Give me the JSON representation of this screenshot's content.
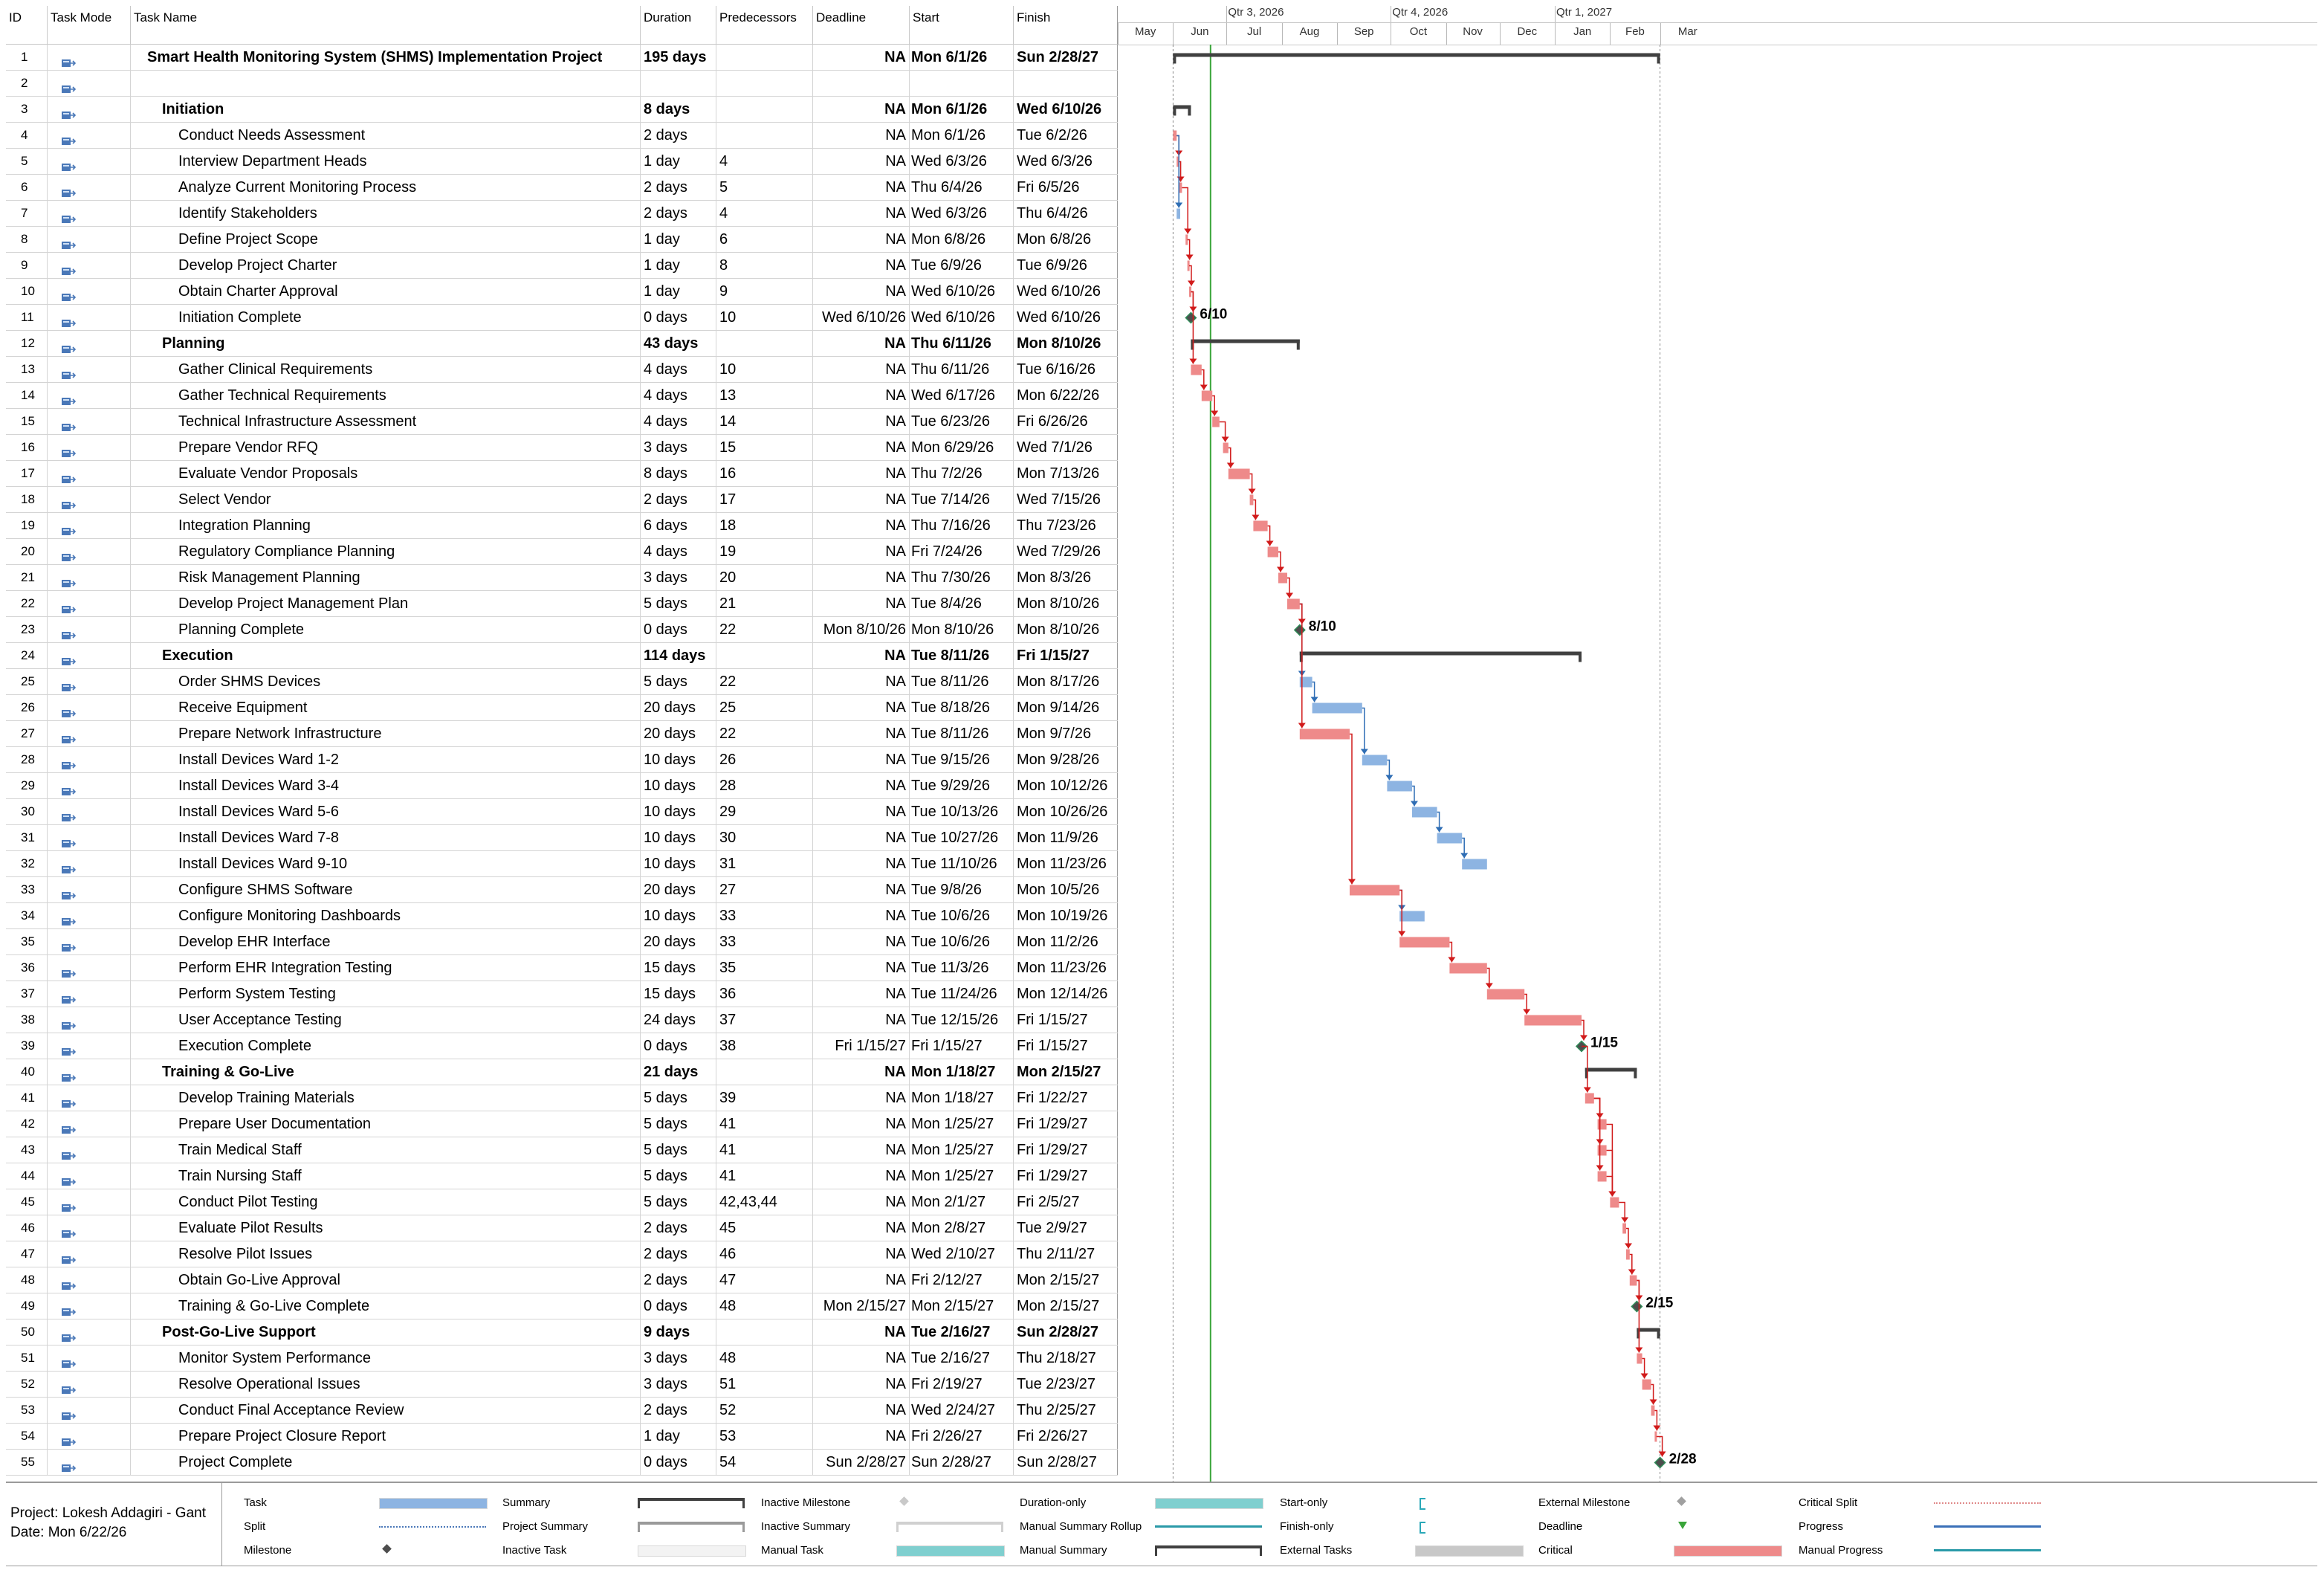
{
  "columns": {
    "id": "ID",
    "mode": "Task Mode",
    "name": "Task Name",
    "duration": "Duration",
    "predecessors": "Predecessors",
    "deadline": "Deadline",
    "start": "Start",
    "finish": "Finish"
  },
  "timescale": {
    "quarters": [
      "Qtr 3, 2026",
      "Qtr 4, 2026",
      "Qtr 1, 2027"
    ],
    "months": [
      "May",
      "Jun",
      "Jul",
      "Aug",
      "Sep",
      "Oct",
      "Nov",
      "Dec",
      "Jan",
      "Feb",
      "Mar"
    ]
  },
  "tasks": [
    {
      "id": "1",
      "name": "Smart Health Monitoring System (SHMS) Implementation Project",
      "duration": "195 days",
      "pred": "",
      "deadline": "NA",
      "start": "Mon 6/1/26",
      "finish": "Sun 2/28/27",
      "level": 0,
      "summary": true
    },
    {
      "id": "2",
      "name": "",
      "duration": "",
      "pred": "",
      "deadline": "",
      "start": "",
      "finish": "",
      "level": 2
    },
    {
      "id": "3",
      "name": "Initiation",
      "duration": "8 days",
      "pred": "",
      "deadline": "NA",
      "start": "Mon 6/1/26",
      "finish": "Wed 6/10/26",
      "level": 1,
      "summary": true
    },
    {
      "id": "4",
      "name": "Conduct Needs Assessment",
      "duration": "2 days",
      "pred": "",
      "deadline": "NA",
      "start": "Mon 6/1/26",
      "finish": "Tue 6/2/26",
      "level": 2
    },
    {
      "id": "5",
      "name": "Interview Department Heads",
      "duration": "1 day",
      "pred": "4",
      "deadline": "NA",
      "start": "Wed 6/3/26",
      "finish": "Wed 6/3/26",
      "level": 2
    },
    {
      "id": "6",
      "name": "Analyze Current Monitoring Process",
      "duration": "2 days",
      "pred": "5",
      "deadline": "NA",
      "start": "Thu 6/4/26",
      "finish": "Fri 6/5/26",
      "level": 2
    },
    {
      "id": "7",
      "name": "Identify Stakeholders",
      "duration": "2 days",
      "pred": "4",
      "deadline": "NA",
      "start": "Wed 6/3/26",
      "finish": "Thu 6/4/26",
      "level": 2
    },
    {
      "id": "8",
      "name": "Define Project Scope",
      "duration": "1 day",
      "pred": "6",
      "deadline": "NA",
      "start": "Mon 6/8/26",
      "finish": "Mon 6/8/26",
      "level": 2
    },
    {
      "id": "9",
      "name": "Develop Project Charter",
      "duration": "1 day",
      "pred": "8",
      "deadline": "NA",
      "start": "Tue 6/9/26",
      "finish": "Tue 6/9/26",
      "level": 2
    },
    {
      "id": "10",
      "name": "Obtain Charter Approval",
      "duration": "1 day",
      "pred": "9",
      "deadline": "NA",
      "start": "Wed 6/10/26",
      "finish": "Wed 6/10/26",
      "level": 2
    },
    {
      "id": "11",
      "name": "Initiation Complete",
      "duration": "0 days",
      "pred": "10",
      "deadline": "Wed 6/10/26",
      "start": "Wed 6/10/26",
      "finish": "Wed 6/10/26",
      "level": 2
    },
    {
      "id": "12",
      "name": "Planning",
      "duration": "43 days",
      "pred": "",
      "deadline": "NA",
      "start": "Thu 6/11/26",
      "finish": "Mon 8/10/26",
      "level": 1,
      "summary": true
    },
    {
      "id": "13",
      "name": "Gather Clinical Requirements",
      "duration": "4 days",
      "pred": "10",
      "deadline": "NA",
      "start": "Thu 6/11/26",
      "finish": "Tue 6/16/26",
      "level": 2
    },
    {
      "id": "14",
      "name": "Gather Technical Requirements",
      "duration": "4 days",
      "pred": "13",
      "deadline": "NA",
      "start": "Wed 6/17/26",
      "finish": "Mon 6/22/26",
      "level": 2
    },
    {
      "id": "15",
      "name": "Technical Infrastructure Assessment",
      "duration": "4 days",
      "pred": "14",
      "deadline": "NA",
      "start": "Tue 6/23/26",
      "finish": "Fri 6/26/26",
      "level": 2
    },
    {
      "id": "16",
      "name": "Prepare Vendor RFQ",
      "duration": "3 days",
      "pred": "15",
      "deadline": "NA",
      "start": "Mon 6/29/26",
      "finish": "Wed 7/1/26",
      "level": 2
    },
    {
      "id": "17",
      "name": "Evaluate Vendor Proposals",
      "duration": "8 days",
      "pred": "16",
      "deadline": "NA",
      "start": "Thu 7/2/26",
      "finish": "Mon 7/13/26",
      "level": 2
    },
    {
      "id": "18",
      "name": "Select Vendor",
      "duration": "2 days",
      "pred": "17",
      "deadline": "NA",
      "start": "Tue 7/14/26",
      "finish": "Wed 7/15/26",
      "level": 2
    },
    {
      "id": "19",
      "name": "Integration Planning",
      "duration": "6 days",
      "pred": "18",
      "deadline": "NA",
      "start": "Thu 7/16/26",
      "finish": "Thu 7/23/26",
      "level": 2
    },
    {
      "id": "20",
      "name": "Regulatory Compliance Planning",
      "duration": "4 days",
      "pred": "19",
      "deadline": "NA",
      "start": "Fri 7/24/26",
      "finish": "Wed 7/29/26",
      "level": 2
    },
    {
      "id": "21",
      "name": "Risk Management Planning",
      "duration": "3 days",
      "pred": "20",
      "deadline": "NA",
      "start": "Thu 7/30/26",
      "finish": "Mon 8/3/26",
      "level": 2
    },
    {
      "id": "22",
      "name": "Develop Project Management Plan",
      "duration": "5 days",
      "pred": "21",
      "deadline": "NA",
      "start": "Tue 8/4/26",
      "finish": "Mon 8/10/26",
      "level": 2
    },
    {
      "id": "23",
      "name": "Planning Complete",
      "duration": "0 days",
      "pred": "22",
      "deadline": "Mon 8/10/26",
      "start": "Mon 8/10/26",
      "finish": "Mon 8/10/26",
      "level": 2
    },
    {
      "id": "24",
      "name": "Execution",
      "duration": "114 days",
      "pred": "",
      "deadline": "NA",
      "start": "Tue 8/11/26",
      "finish": "Fri 1/15/27",
      "level": 1,
      "summary": true
    },
    {
      "id": "25",
      "name": "Order SHMS Devices",
      "duration": "5 days",
      "pred": "22",
      "deadline": "NA",
      "start": "Tue 8/11/26",
      "finish": "Mon 8/17/26",
      "level": 2
    },
    {
      "id": "26",
      "name": "Receive Equipment",
      "duration": "20 days",
      "pred": "25",
      "deadline": "NA",
      "start": "Tue 8/18/26",
      "finish": "Mon 9/14/26",
      "level": 2
    },
    {
      "id": "27",
      "name": "Prepare Network Infrastructure",
      "duration": "20 days",
      "pred": "22",
      "deadline": "NA",
      "start": "Tue 8/11/26",
      "finish": "Mon 9/7/26",
      "level": 2
    },
    {
      "id": "28",
      "name": "Install Devices Ward 1-2",
      "duration": "10 days",
      "pred": "26",
      "deadline": "NA",
      "start": "Tue 9/15/26",
      "finish": "Mon 9/28/26",
      "level": 2
    },
    {
      "id": "29",
      "name": "Install Devices Ward 3-4",
      "duration": "10 days",
      "pred": "28",
      "deadline": "NA",
      "start": "Tue 9/29/26",
      "finish": "Mon 10/12/26",
      "level": 2
    },
    {
      "id": "30",
      "name": "Install Devices Ward 5-6",
      "duration": "10 days",
      "pred": "29",
      "deadline": "NA",
      "start": "Tue 10/13/26",
      "finish": "Mon 10/26/26",
      "level": 2
    },
    {
      "id": "31",
      "name": "Install Devices Ward 7-8",
      "duration": "10 days",
      "pred": "30",
      "deadline": "NA",
      "start": "Tue 10/27/26",
      "finish": "Mon 11/9/26",
      "level": 2
    },
    {
      "id": "32",
      "name": "Install Devices Ward 9-10",
      "duration": "10 days",
      "pred": "31",
      "deadline": "NA",
      "start": "Tue 11/10/26",
      "finish": "Mon 11/23/26",
      "level": 2
    },
    {
      "id": "33",
      "name": "Configure SHMS Software",
      "duration": "20 days",
      "pred": "27",
      "deadline": "NA",
      "start": "Tue 9/8/26",
      "finish": "Mon 10/5/26",
      "level": 2
    },
    {
      "id": "34",
      "name": "Configure Monitoring Dashboards",
      "duration": "10 days",
      "pred": "33",
      "deadline": "NA",
      "start": "Tue 10/6/26",
      "finish": "Mon 10/19/26",
      "level": 2
    },
    {
      "id": "35",
      "name": "Develop EHR Interface",
      "duration": "20 days",
      "pred": "33",
      "deadline": "NA",
      "start": "Tue 10/6/26",
      "finish": "Mon 11/2/26",
      "level": 2
    },
    {
      "id": "36",
      "name": "Perform EHR Integration Testing",
      "duration": "15 days",
      "pred": "35",
      "deadline": "NA",
      "start": "Tue 11/3/26",
      "finish": "Mon 11/23/26",
      "level": 2
    },
    {
      "id": "37",
      "name": "Perform System Testing",
      "duration": "15 days",
      "pred": "36",
      "deadline": "NA",
      "start": "Tue 11/24/26",
      "finish": "Mon 12/14/26",
      "level": 2
    },
    {
      "id": "38",
      "name": "User Acceptance Testing",
      "duration": "24 days",
      "pred": "37",
      "deadline": "NA",
      "start": "Tue 12/15/26",
      "finish": "Fri 1/15/27",
      "level": 2
    },
    {
      "id": "39",
      "name": "Execution Complete",
      "duration": "0 days",
      "pred": "38",
      "deadline": "Fri 1/15/27",
      "start": "Fri 1/15/27",
      "finish": "Fri 1/15/27",
      "level": 2
    },
    {
      "id": "40",
      "name": "Training & Go-Live",
      "duration": "21 days",
      "pred": "",
      "deadline": "NA",
      "start": "Mon 1/18/27",
      "finish": "Mon 2/15/27",
      "level": 1,
      "summary": true
    },
    {
      "id": "41",
      "name": "Develop Training Materials",
      "duration": "5 days",
      "pred": "39",
      "deadline": "NA",
      "start": "Mon 1/18/27",
      "finish": "Fri 1/22/27",
      "level": 2
    },
    {
      "id": "42",
      "name": "Prepare User Documentation",
      "duration": "5 days",
      "pred": "41",
      "deadline": "NA",
      "start": "Mon 1/25/27",
      "finish": "Fri 1/29/27",
      "level": 2
    },
    {
      "id": "43",
      "name": "Train Medical Staff",
      "duration": "5 days",
      "pred": "41",
      "deadline": "NA",
      "start": "Mon 1/25/27",
      "finish": "Fri 1/29/27",
      "level": 2
    },
    {
      "id": "44",
      "name": "Train Nursing Staff",
      "duration": "5 days",
      "pred": "41",
      "deadline": "NA",
      "start": "Mon 1/25/27",
      "finish": "Fri 1/29/27",
      "level": 2
    },
    {
      "id": "45",
      "name": "Conduct Pilot Testing",
      "duration": "5 days",
      "pred": "42,43,44",
      "deadline": "NA",
      "start": "Mon 2/1/27",
      "finish": "Fri 2/5/27",
      "level": 2
    },
    {
      "id": "46",
      "name": "Evaluate Pilot Results",
      "duration": "2 days",
      "pred": "45",
      "deadline": "NA",
      "start": "Mon 2/8/27",
      "finish": "Tue 2/9/27",
      "level": 2
    },
    {
      "id": "47",
      "name": "Resolve Pilot Issues",
      "duration": "2 days",
      "pred": "46",
      "deadline": "NA",
      "start": "Wed 2/10/27",
      "finish": "Thu 2/11/27",
      "level": 2
    },
    {
      "id": "48",
      "name": "Obtain Go-Live Approval",
      "duration": "2 days",
      "pred": "47",
      "deadline": "NA",
      "start": "Fri 2/12/27",
      "finish": "Mon 2/15/27",
      "level": 2
    },
    {
      "id": "49",
      "name": "Training & Go-Live Complete",
      "duration": "0 days",
      "pred": "48",
      "deadline": "Mon 2/15/27",
      "start": "Mon 2/15/27",
      "finish": "Mon 2/15/27",
      "level": 2
    },
    {
      "id": "50",
      "name": "Post-Go-Live Support",
      "duration": "9 days",
      "pred": "",
      "deadline": "NA",
      "start": "Tue 2/16/27",
      "finish": "Sun 2/28/27",
      "level": 1,
      "summary": true
    },
    {
      "id": "51",
      "name": "Monitor System Performance",
      "duration": "3 days",
      "pred": "48",
      "deadline": "NA",
      "start": "Tue 2/16/27",
      "finish": "Thu 2/18/27",
      "level": 2
    },
    {
      "id": "52",
      "name": "Resolve Operational Issues",
      "duration": "3 days",
      "pred": "51",
      "deadline": "NA",
      "start": "Fri 2/19/27",
      "finish": "Tue 2/23/27",
      "level": 2
    },
    {
      "id": "53",
      "name": "Conduct Final Acceptance Review",
      "duration": "2 days",
      "pred": "52",
      "deadline": "NA",
      "start": "Wed 2/24/27",
      "finish": "Thu 2/25/27",
      "level": 2
    },
    {
      "id": "54",
      "name": "Prepare Project Closure Report",
      "duration": "1 day",
      "pred": "53",
      "deadline": "NA",
      "start": "Fri 2/26/27",
      "finish": "Fri 2/26/27",
      "level": 2
    },
    {
      "id": "55",
      "name": "Project Complete",
      "duration": "0 days",
      "pred": "54",
      "deadline": "Sun 2/28/27",
      "start": "Sun 2/28/27",
      "finish": "Sun 2/28/27",
      "level": 2
    }
  ],
  "gantt_bars": [
    {
      "row": 1,
      "type": "summary",
      "start": "2026-06-01",
      "end": "2027-02-28"
    },
    {
      "row": 3,
      "type": "summary",
      "start": "2026-06-01",
      "end": "2026-06-10"
    },
    {
      "row": 4,
      "type": "critical",
      "start": "2026-06-01",
      "end": "2026-06-02"
    },
    {
      "row": 5,
      "type": "critical",
      "start": "2026-06-03",
      "end": "2026-06-03"
    },
    {
      "row": 6,
      "type": "critical",
      "start": "2026-06-04",
      "end": "2026-06-05"
    },
    {
      "row": 7,
      "type": "normal",
      "start": "2026-06-03",
      "end": "2026-06-04"
    },
    {
      "row": 8,
      "type": "critical",
      "start": "2026-06-08",
      "end": "2026-06-08"
    },
    {
      "row": 9,
      "type": "critical",
      "start": "2026-06-09",
      "end": "2026-06-09"
    },
    {
      "row": 10,
      "type": "critical",
      "start": "2026-06-10",
      "end": "2026-06-10"
    },
    {
      "row": 11,
      "type": "milestone",
      "start": "2026-06-10",
      "label": "6/10"
    },
    {
      "row": 12,
      "type": "summary",
      "start": "2026-06-11",
      "end": "2026-08-10"
    },
    {
      "row": 13,
      "type": "critical",
      "start": "2026-06-11",
      "end": "2026-06-16"
    },
    {
      "row": 14,
      "type": "critical",
      "start": "2026-06-17",
      "end": "2026-06-22"
    },
    {
      "row": 15,
      "type": "critical",
      "start": "2026-06-23",
      "end": "2026-06-26"
    },
    {
      "row": 16,
      "type": "critical",
      "start": "2026-06-29",
      "end": "2026-07-01"
    },
    {
      "row": 17,
      "type": "critical",
      "start": "2026-07-02",
      "end": "2026-07-13"
    },
    {
      "row": 18,
      "type": "critical",
      "start": "2026-07-14",
      "end": "2026-07-15"
    },
    {
      "row": 19,
      "type": "critical",
      "start": "2026-07-16",
      "end": "2026-07-23"
    },
    {
      "row": 20,
      "type": "critical",
      "start": "2026-07-24",
      "end": "2026-07-29"
    },
    {
      "row": 21,
      "type": "critical",
      "start": "2026-07-30",
      "end": "2026-08-03"
    },
    {
      "row": 22,
      "type": "critical",
      "start": "2026-08-04",
      "end": "2026-08-10"
    },
    {
      "row": 23,
      "type": "milestone",
      "start": "2026-08-10",
      "label": "8/10"
    },
    {
      "row": 24,
      "type": "summary",
      "start": "2026-08-11",
      "end": "2027-01-15"
    },
    {
      "row": 25,
      "type": "normal",
      "start": "2026-08-11",
      "end": "2026-08-17"
    },
    {
      "row": 26,
      "type": "normal",
      "start": "2026-08-18",
      "end": "2026-09-14"
    },
    {
      "row": 27,
      "type": "critical",
      "start": "2026-08-11",
      "end": "2026-09-07"
    },
    {
      "row": 28,
      "type": "normal",
      "start": "2026-09-15",
      "end": "2026-09-28"
    },
    {
      "row": 29,
      "type": "normal",
      "start": "2026-09-29",
      "end": "2026-10-12"
    },
    {
      "row": 30,
      "type": "normal",
      "start": "2026-10-13",
      "end": "2026-10-26"
    },
    {
      "row": 31,
      "type": "normal",
      "start": "2026-10-27",
      "end": "2026-11-09"
    },
    {
      "row": 32,
      "type": "normal",
      "start": "2026-11-10",
      "end": "2026-11-23"
    },
    {
      "row": 33,
      "type": "critical",
      "start": "2026-09-08",
      "end": "2026-10-05"
    },
    {
      "row": 34,
      "type": "normal",
      "start": "2026-10-06",
      "end": "2026-10-19"
    },
    {
      "row": 35,
      "type": "critical",
      "start": "2026-10-06",
      "end": "2026-11-02"
    },
    {
      "row": 36,
      "type": "critical",
      "start": "2026-11-03",
      "end": "2026-11-23"
    },
    {
      "row": 37,
      "type": "critical",
      "start": "2026-11-24",
      "end": "2026-12-14"
    },
    {
      "row": 38,
      "type": "critical",
      "start": "2026-12-15",
      "end": "2027-01-15"
    },
    {
      "row": 39,
      "type": "milestone",
      "start": "2027-01-15",
      "label": "1/15"
    },
    {
      "row": 40,
      "type": "summary",
      "start": "2027-01-18",
      "end": "2027-02-15"
    },
    {
      "row": 41,
      "type": "critical",
      "start": "2027-01-18",
      "end": "2027-01-22"
    },
    {
      "row": 42,
      "type": "critical",
      "start": "2027-01-25",
      "end": "2027-01-29"
    },
    {
      "row": 43,
      "type": "critical",
      "start": "2027-01-25",
      "end": "2027-01-29"
    },
    {
      "row": 44,
      "type": "critical",
      "start": "2027-01-25",
      "end": "2027-01-29"
    },
    {
      "row": 45,
      "type": "critical",
      "start": "2027-02-01",
      "end": "2027-02-05"
    },
    {
      "row": 46,
      "type": "critical",
      "start": "2027-02-08",
      "end": "2027-02-09"
    },
    {
      "row": 47,
      "type": "critical",
      "start": "2027-02-10",
      "end": "2027-02-11"
    },
    {
      "row": 48,
      "type": "critical",
      "start": "2027-02-12",
      "end": "2027-02-15"
    },
    {
      "row": 49,
      "type": "milestone",
      "start": "2027-02-15",
      "label": "2/15"
    },
    {
      "row": 50,
      "type": "summary",
      "start": "2027-02-16",
      "end": "2027-02-28"
    },
    {
      "row": 51,
      "type": "critical",
      "start": "2027-02-16",
      "end": "2027-02-18"
    },
    {
      "row": 52,
      "type": "critical",
      "start": "2027-02-19",
      "end": "2027-02-23"
    },
    {
      "row": 53,
      "type": "critical",
      "start": "2027-02-24",
      "end": "2027-02-25"
    },
    {
      "row": 54,
      "type": "critical",
      "start": "2027-02-26",
      "end": "2027-02-26"
    },
    {
      "row": 55,
      "type": "milestone",
      "start": "2027-02-28",
      "label": "2/28"
    }
  ],
  "status_date": "2026-06-22",
  "legend": {
    "project_line": "Project: Lokesh Addagiri - Gant",
    "date_line": "Date: Mon 6/22/26",
    "items": [
      [
        "Task",
        "Split",
        "Milestone"
      ],
      [
        "Summary",
        "Project Summary",
        "Inactive Task"
      ],
      [
        "Inactive Milestone",
        "Inactive Summary",
        "Manual Task"
      ],
      [
        "Duration-only",
        "Manual Summary Rollup",
        "Manual Summary"
      ],
      [
        "Start-only",
        "Finish-only",
        "External Tasks"
      ],
      [
        "External Milestone",
        "Deadline",
        "Critical"
      ],
      [
        "Critical Split",
        "Progress",
        "Manual Progress"
      ]
    ]
  },
  "colors": {
    "critical": "#ee8a8a",
    "normal": "#8db4e2",
    "summary": "#404040",
    "link_critical": "#d11a1a",
    "link_normal": "#2e6db4",
    "status_line": "#3aa53a"
  }
}
